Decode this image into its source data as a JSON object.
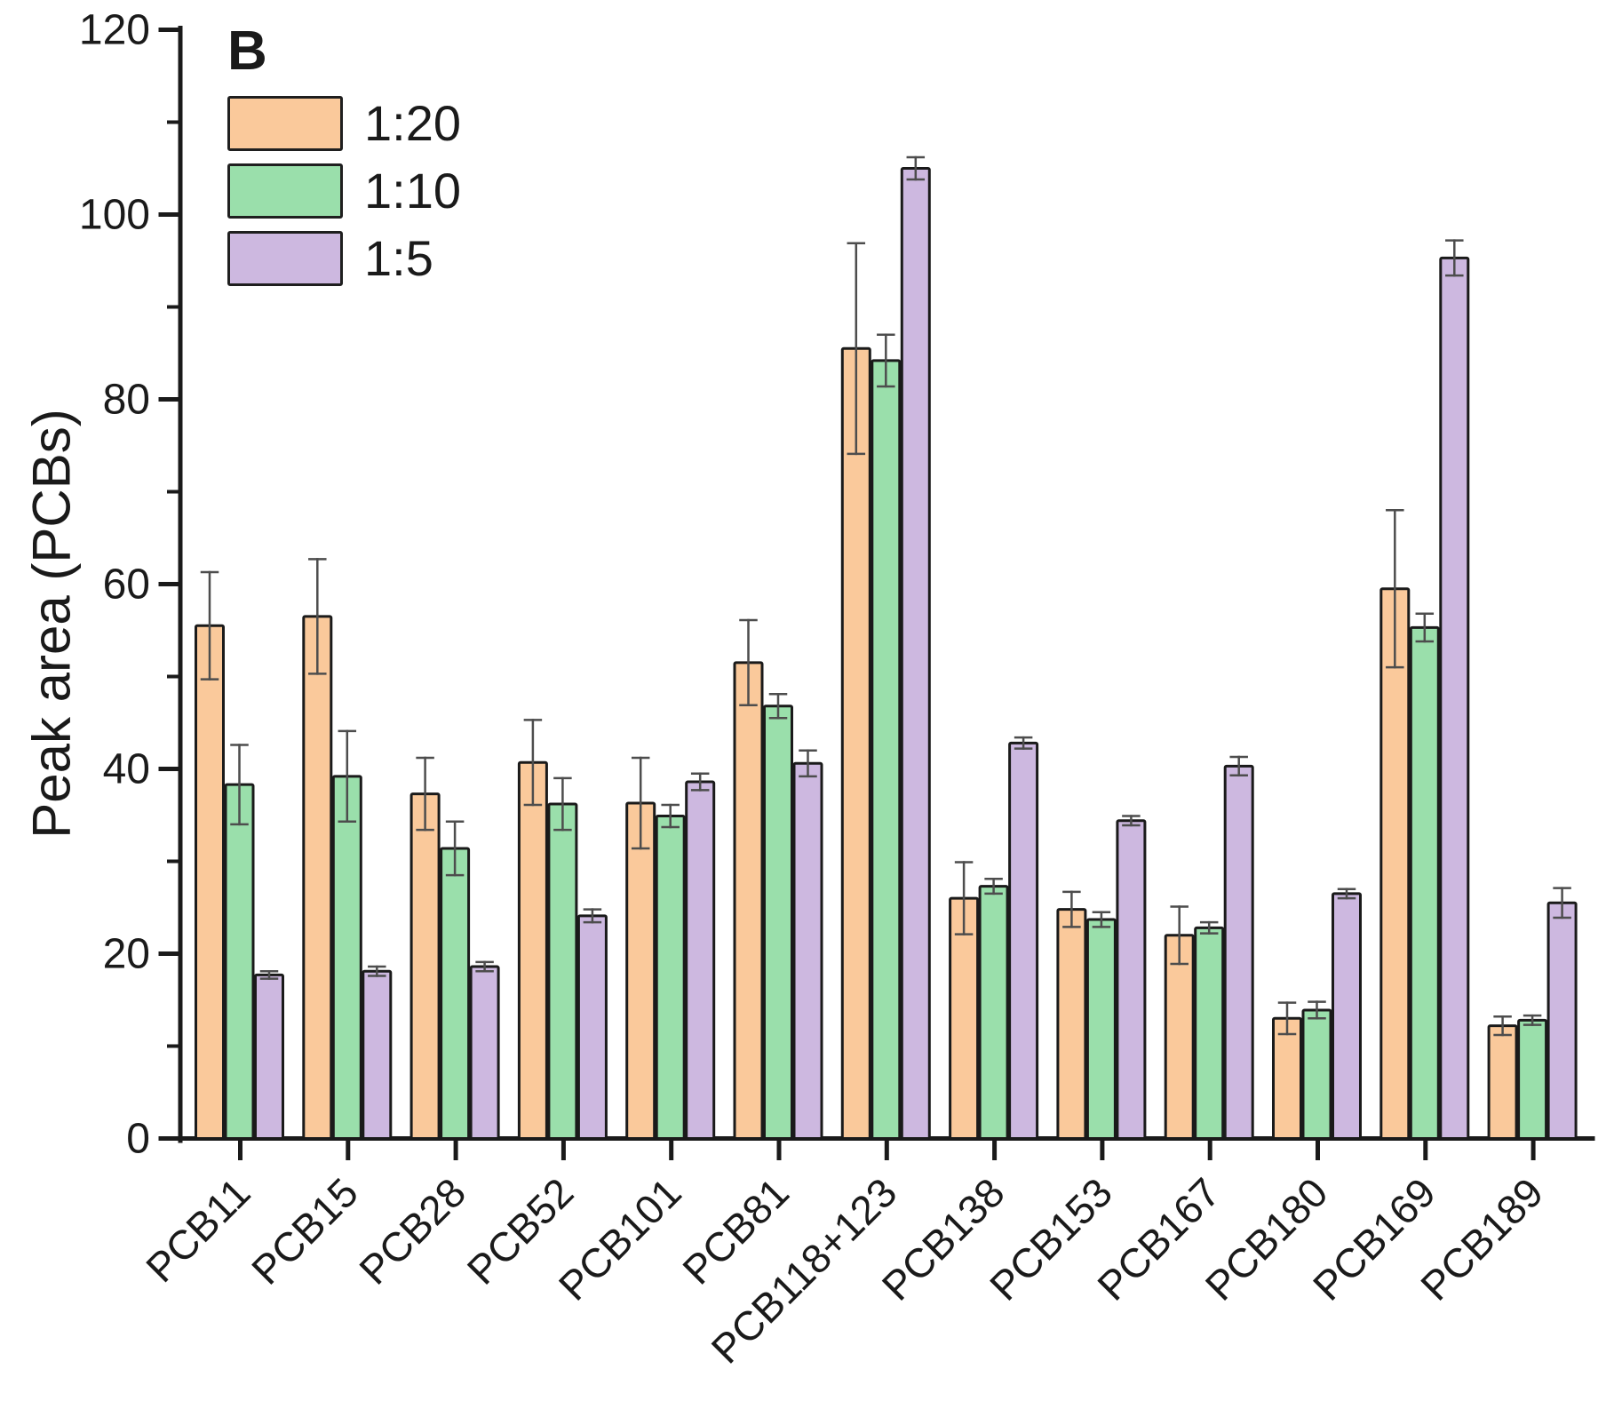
{
  "panel_label": "B",
  "legend": {
    "position": "top-left",
    "items": [
      {
        "label": "1:20",
        "color": "#FAC99B"
      },
      {
        "label": "1:10",
        "color": "#9ADFAB"
      },
      {
        "label": "1:5",
        "color": "#CDB8E0"
      }
    ]
  },
  "chart_data": {
    "type": "bar",
    "title": "",
    "xlabel": "",
    "ylabel": "Peak area (PCBs)",
    "ylim": [
      0,
      120
    ],
    "y_major_ticks": [
      0,
      20,
      40,
      60,
      80,
      100,
      120
    ],
    "y_minor_tick_step": 10,
    "grid": false,
    "error_bars": true,
    "bar_outline_color": "#1a1a1a",
    "error_bar_color": "#4d4d4d",
    "axis_color": "#1a1a1a",
    "categories": [
      "PCB11",
      "PCB15",
      "PCB28",
      "PCB52",
      "PCB101",
      "PCB81",
      "PCB118+123",
      "PCB138",
      "PCB153",
      "PCB167",
      "PCB180",
      "PCB169",
      "PCB189"
    ],
    "series": [
      {
        "name": "1:20",
        "color": "#FAC99B",
        "values": [
          55.5,
          56.5,
          37.3,
          40.7,
          36.3,
          51.5,
          85.5,
          26.0,
          24.8,
          22.0,
          13.0,
          59.5,
          12.2
        ],
        "errors": [
          5.8,
          6.2,
          3.9,
          4.6,
          4.9,
          4.6,
          11.4,
          3.9,
          1.9,
          3.1,
          1.7,
          8.5,
          1.0
        ]
      },
      {
        "name": "1:10",
        "color": "#9ADFAB",
        "values": [
          38.3,
          39.2,
          31.4,
          36.2,
          34.9,
          46.8,
          84.2,
          27.3,
          23.7,
          22.8,
          13.9,
          55.3,
          12.8
        ],
        "errors": [
          4.3,
          4.9,
          2.9,
          2.8,
          1.2,
          1.3,
          2.8,
          0.8,
          0.8,
          0.6,
          0.9,
          1.5,
          0.5
        ]
      },
      {
        "name": "1:5",
        "color": "#CDB8E0",
        "values": [
          17.7,
          18.1,
          18.6,
          24.1,
          38.6,
          40.6,
          105.0,
          42.8,
          34.4,
          40.3,
          26.5,
          95.3,
          25.5
        ],
        "errors": [
          0.4,
          0.5,
          0.5,
          0.7,
          0.9,
          1.4,
          1.2,
          0.6,
          0.5,
          1.0,
          0.5,
          1.9,
          1.6
        ]
      }
    ]
  }
}
